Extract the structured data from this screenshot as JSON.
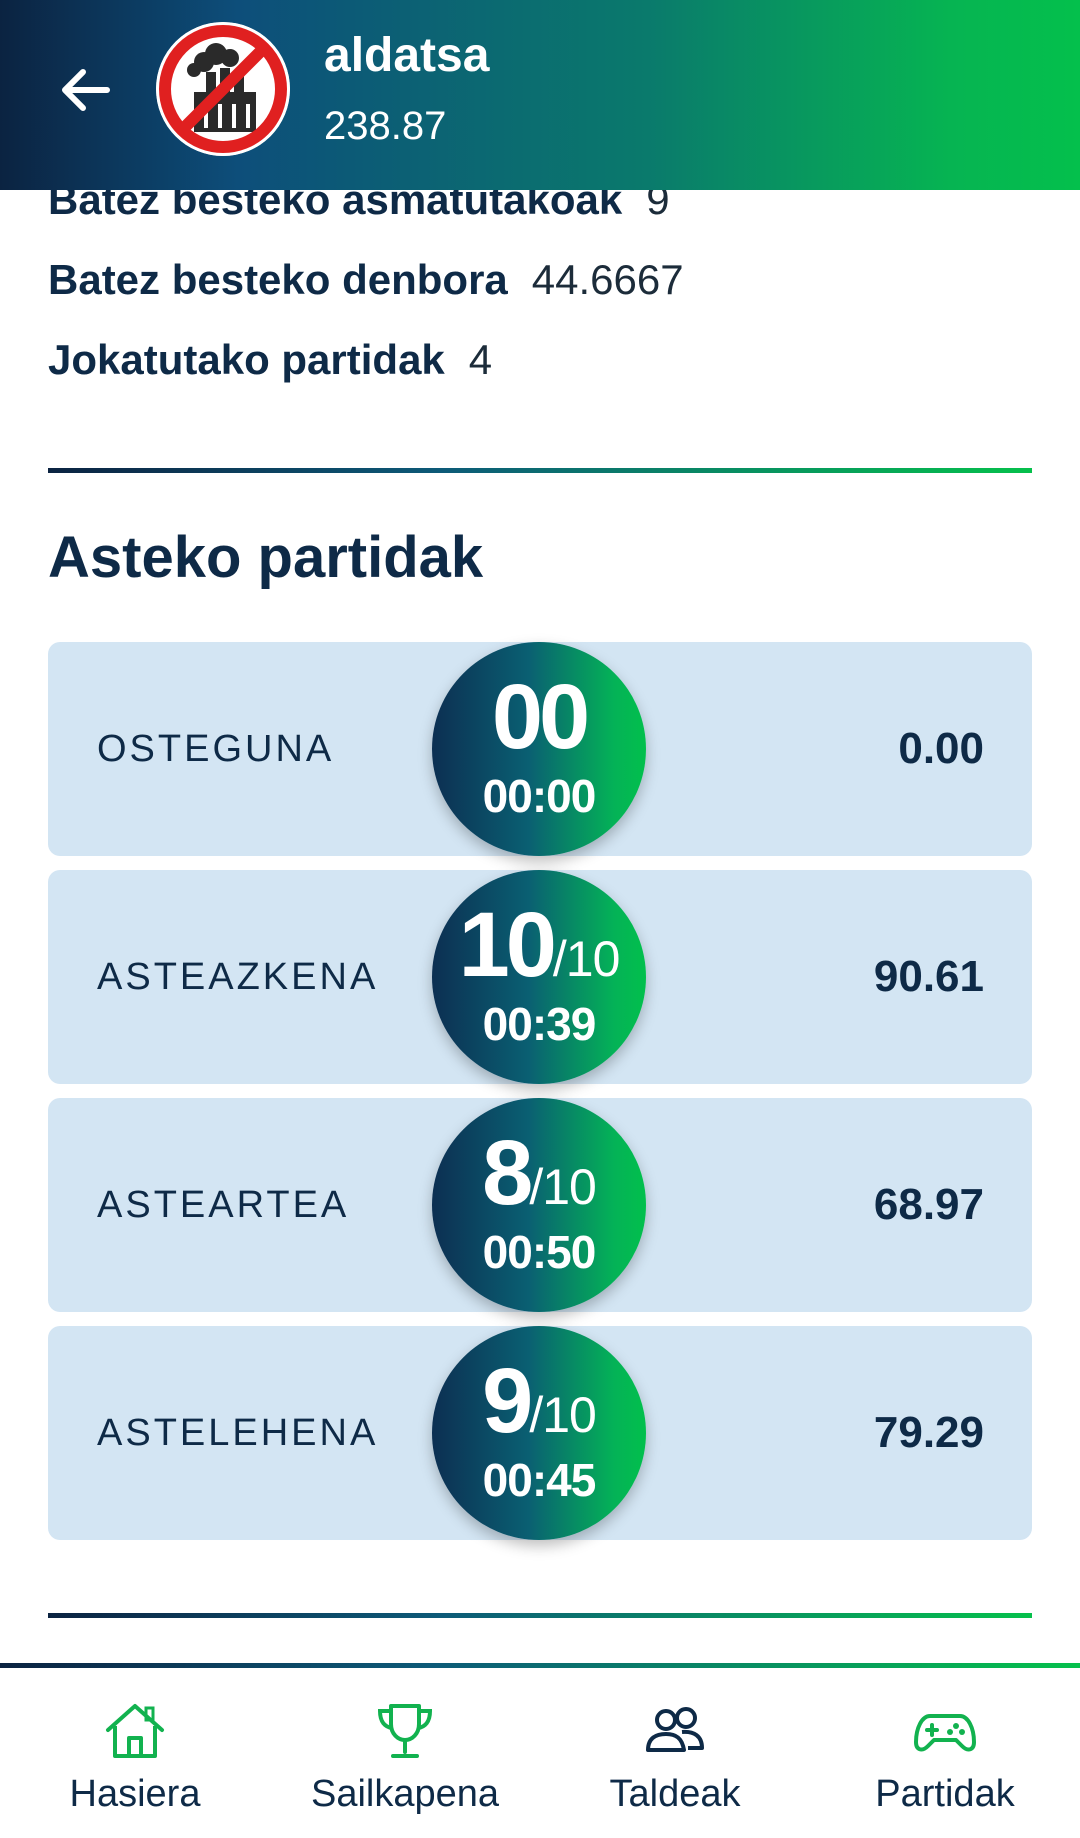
{
  "header": {
    "name": "aldatsa",
    "score": "238.87",
    "back_icon": "arrow-left-icon",
    "avatar_icon": "no-pollution-icon"
  },
  "stats": [
    {
      "label": "Batez besteko asmatutakoak",
      "value": "9"
    },
    {
      "label": "Batez besteko denbora",
      "value": "44.6667"
    },
    {
      "label": "Jokatutako partidak",
      "value": "4"
    }
  ],
  "section_title": "Asteko partidak",
  "games": [
    {
      "day": "OSTEGUNA",
      "correct": "00",
      "total": "",
      "time": "00:00",
      "points": "0.00"
    },
    {
      "day": "ASTEAZKENA",
      "correct": "10",
      "total": "/10",
      "time": "00:39",
      "points": "90.61"
    },
    {
      "day": "ASTEARTEA",
      "correct": "8",
      "total": "/10",
      "time": "00:50",
      "points": "68.97"
    },
    {
      "day": "ASTELEHENA",
      "correct": "9",
      "total": "/10",
      "time": "00:45",
      "points": "79.29"
    }
  ],
  "nav": [
    {
      "label": "Hasiera",
      "icon": "home-icon"
    },
    {
      "label": "Sailkapena",
      "icon": "trophy-icon"
    },
    {
      "label": "Taldeak",
      "icon": "users-icon"
    },
    {
      "label": "Partidak",
      "icon": "gamepad-icon"
    }
  ],
  "colors": {
    "accent_green": "#04c04c",
    "navy": "#0e2a47",
    "card_bg": "#d3e5f3"
  }
}
